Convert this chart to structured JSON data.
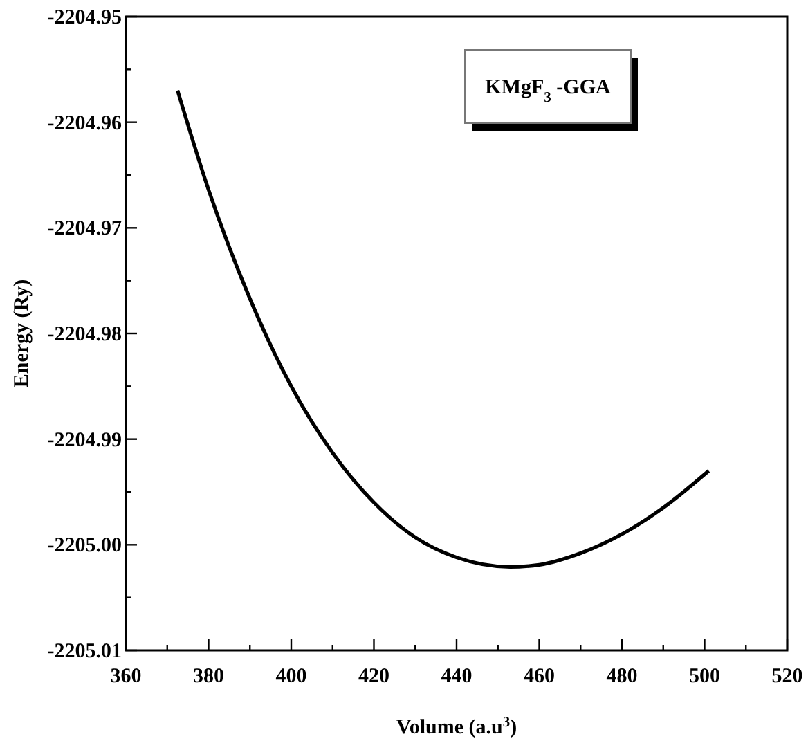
{
  "chart_data": {
    "type": "line",
    "xlabel": "Volume (a.u$^{3}$)",
    "ylabel": "Energy (Ry)",
    "annotations": [
      "KMgF$_{3}$ -GGA"
    ],
    "xlim": [
      360,
      520
    ],
    "ylim": [
      -2205.01,
      -2204.95
    ],
    "xticks": [
      360,
      {
        "value": 370,
        "label": null
      },
      380,
      {
        "value": 390,
        "label": null
      },
      400,
      {
        "value": 410,
        "label": null
      },
      420,
      {
        "value": 430,
        "label": null
      },
      440,
      {
        "value": 450,
        "label": null
      },
      460,
      {
        "value": 470,
        "label": null
      },
      480,
      {
        "value": 490,
        "label": null
      },
      500,
      {
        "value": 510,
        "label": null
      },
      520
    ],
    "yticks": [
      {
        "value": -2205.01,
        "label": "-2205.01"
      },
      {
        "value": -2205.005,
        "label": null
      },
      {
        "value": -2205,
        "label": "-2205.00"
      },
      {
        "value": -2204.995,
        "label": null
      },
      -2204.99,
      {
        "value": -2204.985,
        "label": null
      },
      {
        "value": -2204.98,
        "label": "-2204.98"
      },
      {
        "value": -2204.975,
        "label": null
      },
      {
        "value": -2204.97,
        "label": "-2204.97"
      },
      {
        "value": -2204.965,
        "label": null
      },
      {
        "value": -2204.96,
        "label": "-2204.96"
      },
      {
        "value": -2204.955,
        "label": null
      },
      {
        "value": -2204.95,
        "label": "-2204.95"
      }
    ],
    "grid": false,
    "marker": "none",
    "line_style": "solid",
    "series": [
      {
        "color": "#000000",
        "x": [
          372.5,
          380,
          390,
          400,
          410,
          420,
          430,
          440,
          453,
          460,
          470,
          480,
          490,
          501
        ],
        "values": [
          -2204.957,
          -2204.9664,
          -2204.9767,
          -2204.985,
          -2204.9913,
          -2204.996,
          -2204.9993,
          -2205.0012,
          -2205.0021,
          -2205.0019,
          -2205.0008,
          -2204.999,
          -2204.9965,
          -2204.993
        ]
      }
    ]
  }
}
